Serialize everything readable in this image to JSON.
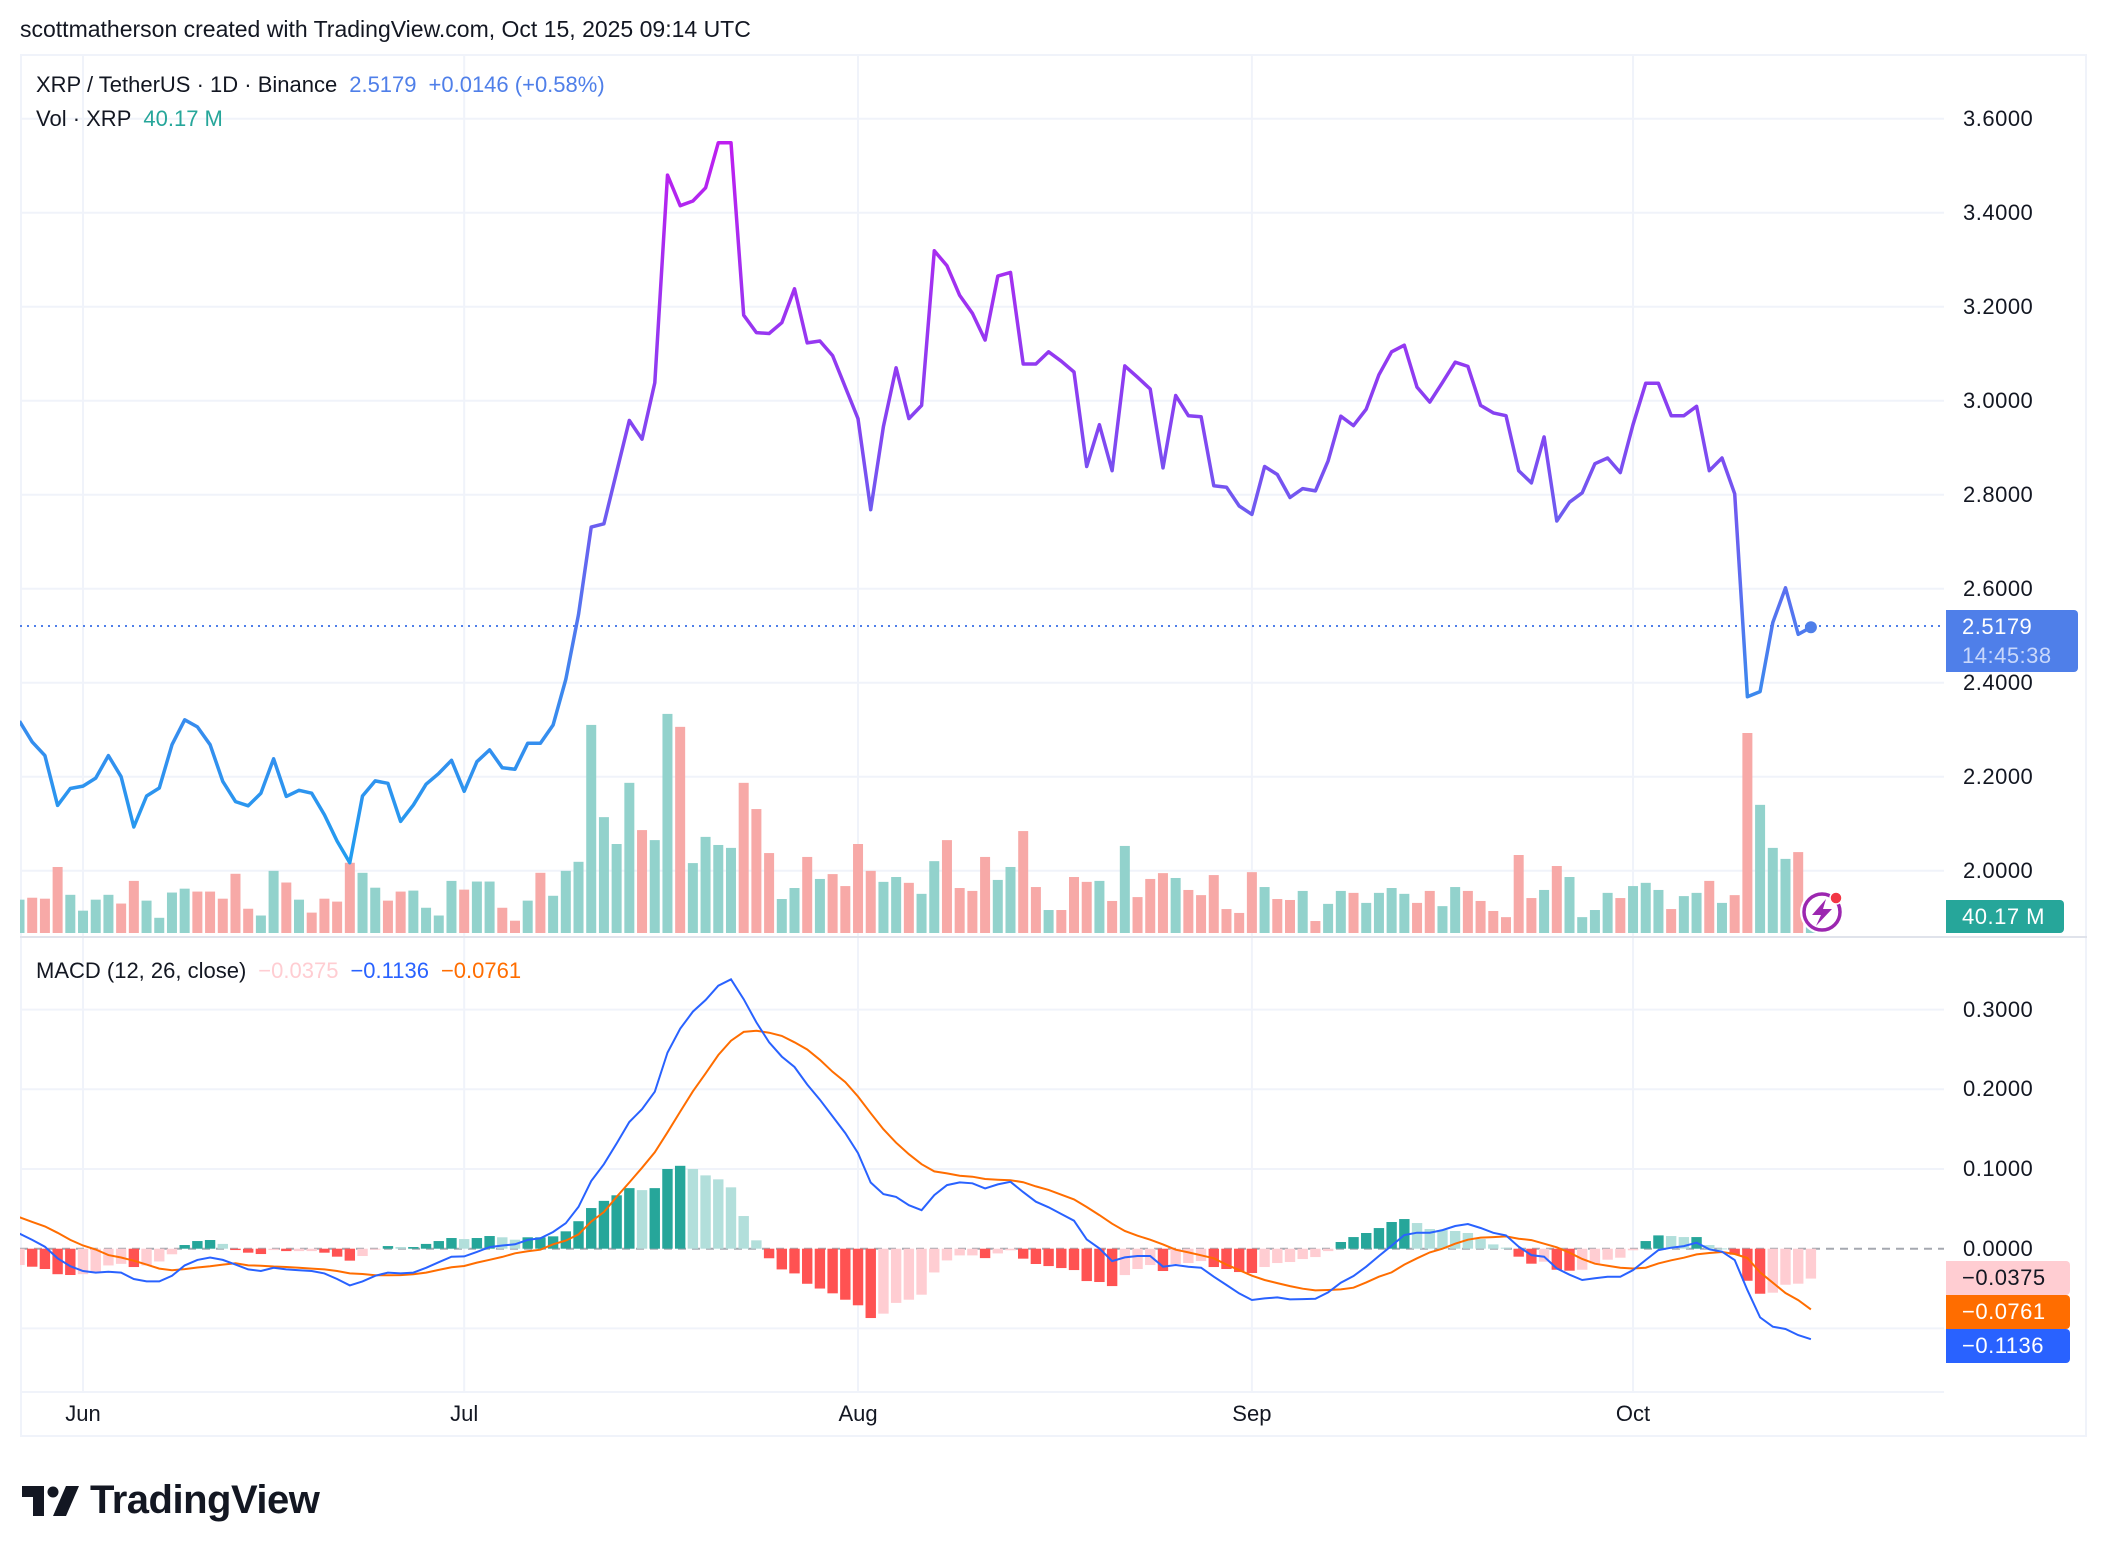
{
  "header": {
    "attribution": "scottmatherson created with TradingView.com, Oct 15, 2025 09:14 UTC"
  },
  "legend": {
    "symbol": "XRP / TetherUS · 1D · Binance",
    "last_price": "2.5179",
    "change": "+0.0146 (+0.58%)",
    "volume_label": "Vol · XRP",
    "volume_value": "40.17 M",
    "macd_label": "MACD (12, 26, close)",
    "macd_histogram": "−0.0375",
    "macd_line": "−0.1136",
    "macd_signal": "−0.0761"
  },
  "price_tag": {
    "price": "2.5179",
    "countdown": "14:45:38"
  },
  "volume_tag": "40.17 M",
  "macd_tags": {
    "histogram": "−0.0375",
    "signal": "−0.0761",
    "macd": "−0.1136"
  },
  "price_axis_ticks": [
    "3.6000",
    "3.4000",
    "3.2000",
    "3.0000",
    "2.8000",
    "2.6000",
    "2.4000",
    "2.2000",
    "2.0000"
  ],
  "macd_axis_ticks": [
    "0.3000",
    "0.2000",
    "0.1000",
    "0.0000"
  ],
  "time_axis_ticks": [
    {
      "label": "Jun",
      "date": "2025-06-01"
    },
    {
      "label": "Jul",
      "date": "2025-07-01"
    },
    {
      "label": "Aug",
      "date": "2025-08-01"
    },
    {
      "label": "Sep",
      "date": "2025-09-01"
    },
    {
      "label": "Oct",
      "date": "2025-10-01"
    }
  ],
  "logo": {
    "text": "TradingView"
  },
  "colors": {
    "price_line_low": "#1e9ff0",
    "price_line_high": "#c21cf0",
    "last_price": "#4f7fe9",
    "volume_up": "#92d2cc",
    "volume_down": "#f7a9a7",
    "macd_line": "#2962ff",
    "signal_line": "#ff6d00",
    "hist_pos_rising": "#26a69a",
    "hist_pos_falling": "#b2dfdb",
    "hist_neg_falling": "#ff5252",
    "hist_neg_rising": "#ffcdd2",
    "grid": "#f0f3fa",
    "alert_icon": "#9c27b0"
  },
  "chart_data": {
    "type": "line",
    "symbol": "XRP / TetherUS",
    "interval": "1D",
    "ylim": [
      2.0,
      3.6
    ],
    "macd_ylim": [
      -0.1,
      0.3
    ],
    "grid": true,
    "dates": [
      "2025-05-27",
      "2025-05-28",
      "2025-05-29",
      "2025-05-30",
      "2025-05-31",
      "2025-06-01",
      "2025-06-02",
      "2025-06-03",
      "2025-06-04",
      "2025-06-05",
      "2025-06-06",
      "2025-06-07",
      "2025-06-08",
      "2025-06-09",
      "2025-06-10",
      "2025-06-11",
      "2025-06-12",
      "2025-06-13",
      "2025-06-14",
      "2025-06-15",
      "2025-06-16",
      "2025-06-17",
      "2025-06-18",
      "2025-06-19",
      "2025-06-20",
      "2025-06-21",
      "2025-06-22",
      "2025-06-23",
      "2025-06-24",
      "2025-06-25",
      "2025-06-26",
      "2025-06-27",
      "2025-06-28",
      "2025-06-29",
      "2025-06-30",
      "2025-07-01",
      "2025-07-02",
      "2025-07-03",
      "2025-07-04",
      "2025-07-05",
      "2025-07-06",
      "2025-07-07",
      "2025-07-08",
      "2025-07-09",
      "2025-07-10",
      "2025-07-11",
      "2025-07-12",
      "2025-07-13",
      "2025-07-14",
      "2025-07-15",
      "2025-07-16",
      "2025-07-17",
      "2025-07-18",
      "2025-07-19",
      "2025-07-20",
      "2025-07-21",
      "2025-07-22",
      "2025-07-23",
      "2025-07-24",
      "2025-07-25",
      "2025-07-26",
      "2025-07-27",
      "2025-07-28",
      "2025-07-29",
      "2025-07-30",
      "2025-07-31",
      "2025-08-01",
      "2025-08-02",
      "2025-08-03",
      "2025-08-04",
      "2025-08-05",
      "2025-08-06",
      "2025-08-07",
      "2025-08-08",
      "2025-08-09",
      "2025-08-10",
      "2025-08-11",
      "2025-08-12",
      "2025-08-13",
      "2025-08-14",
      "2025-08-15",
      "2025-08-16",
      "2025-08-17",
      "2025-08-18",
      "2025-08-19",
      "2025-08-20",
      "2025-08-21",
      "2025-08-22",
      "2025-08-23",
      "2025-08-24",
      "2025-08-25",
      "2025-08-26",
      "2025-08-27",
      "2025-08-28",
      "2025-08-29",
      "2025-08-30",
      "2025-08-31",
      "2025-09-01",
      "2025-09-02",
      "2025-09-03",
      "2025-09-04",
      "2025-09-05",
      "2025-09-06",
      "2025-09-07",
      "2025-09-08",
      "2025-09-09",
      "2025-09-10",
      "2025-09-11",
      "2025-09-12",
      "2025-09-13",
      "2025-09-14",
      "2025-09-15",
      "2025-09-16",
      "2025-09-17",
      "2025-09-18",
      "2025-09-19",
      "2025-09-20",
      "2025-09-21",
      "2025-09-22",
      "2025-09-23",
      "2025-09-24",
      "2025-09-25",
      "2025-09-26",
      "2025-09-27",
      "2025-09-28",
      "2025-09-29",
      "2025-09-30",
      "2025-10-01",
      "2025-10-02",
      "2025-10-03",
      "2025-10-04",
      "2025-10-05",
      "2025-10-06",
      "2025-10-07",
      "2025-10-08",
      "2025-10-09",
      "2025-10-10",
      "2025-10-11",
      "2025-10-12",
      "2025-10-13",
      "2025-10-14",
      "2025-10-15"
    ],
    "close": [
      2.318,
      2.274,
      2.245,
      2.139,
      2.175,
      2.18,
      2.197,
      2.245,
      2.2,
      2.093,
      2.159,
      2.176,
      2.268,
      2.321,
      2.306,
      2.268,
      2.19,
      2.147,
      2.138,
      2.165,
      2.238,
      2.158,
      2.171,
      2.165,
      2.119,
      2.063,
      2.017,
      2.159,
      2.191,
      2.186,
      2.105,
      2.14,
      2.184,
      2.207,
      2.235,
      2.169,
      2.232,
      2.257,
      2.219,
      2.216,
      2.271,
      2.271,
      2.31,
      2.407,
      2.545,
      2.731,
      2.738,
      2.848,
      2.958,
      2.918,
      3.038,
      3.48,
      3.415,
      3.425,
      3.453,
      3.549,
      3.549,
      3.182,
      3.145,
      3.143,
      3.166,
      3.238,
      3.123,
      3.127,
      3.096,
      3.029,
      2.962,
      2.768,
      2.945,
      3.07,
      2.962,
      2.99,
      3.319,
      3.287,
      3.224,
      3.186,
      3.129,
      3.265,
      3.273,
      3.078,
      3.078,
      3.104,
      3.084,
      3.061,
      2.86,
      2.949,
      2.851,
      3.074,
      3.05,
      3.025,
      2.857,
      3.011,
      2.968,
      2.966,
      2.819,
      2.816,
      2.776,
      2.758,
      2.86,
      2.843,
      2.794,
      2.813,
      2.808,
      2.872,
      2.967,
      2.947,
      2.982,
      3.055,
      3.104,
      3.118,
      3.029,
      2.997,
      3.039,
      3.082,
      3.073,
      2.99,
      2.974,
      2.968,
      2.851,
      2.825,
      2.923,
      2.744,
      2.784,
      2.804,
      2.866,
      2.878,
      2.847,
      2.949,
      3.037,
      3.037,
      2.968,
      2.968,
      2.988,
      2.851,
      2.878,
      2.802,
      2.37,
      2.381,
      2.528,
      2.602,
      2.503,
      2.5179
    ],
    "volume_millions": [
      103,
      109,
      106,
      204,
      118,
      69,
      103,
      118,
      91,
      161,
      100,
      47,
      125,
      137,
      128,
      128,
      106,
      183,
      75,
      54,
      192,
      156,
      103,
      63,
      106,
      97,
      217,
      186,
      140,
      100,
      128,
      131,
      78,
      54,
      161,
      134,
      159,
      159,
      78,
      38,
      100,
      186,
      115,
      192,
      220,
      643,
      358,
      275,
      464,
      318,
      287,
      677,
      637,
      216,
      297,
      272,
      263,
      464,
      383,
      247,
      105,
      139,
      235,
      167,
      182,
      145,
      275,
      192,
      158,
      173,
      155,
      121,
      222,
      287,
      139,
      130,
      235,
      164,
      204,
      315,
      142,
      71,
      71,
      173,
      158,
      161,
      99,
      269,
      111,
      167,
      185,
      170,
      133,
      117,
      179,
      74,
      62,
      188,
      142,
      105,
      102,
      130,
      37,
      90,
      130,
      124,
      93,
      124,
      139,
      121,
      93,
      130,
      83,
      142,
      130,
      99,
      68,
      49,
      241,
      108,
      133,
      207,
      173,
      49,
      71,
      124,
      108,
      145,
      155,
      133,
      74,
      114,
      124,
      161,
      93,
      117,
      618,
      396,
      263,
      229,
      250,
      40.17
    ],
    "volume_up": [
      1,
      0,
      0,
      0,
      1,
      1,
      1,
      1,
      0,
      0,
      1,
      1,
      1,
      1,
      0,
      0,
      0,
      0,
      0,
      1,
      1,
      0,
      1,
      0,
      0,
      0,
      0,
      1,
      1,
      0,
      0,
      1,
      1,
      1,
      1,
      0,
      1,
      1,
      0,
      0,
      1,
      0,
      1,
      1,
      1,
      1,
      1,
      1,
      1,
      0,
      1,
      1,
      0,
      1,
      1,
      1,
      1,
      0,
      0,
      0,
      1,
      1,
      0,
      1,
      0,
      0,
      0,
      0,
      1,
      1,
      0,
      1,
      1,
      0,
      0,
      0,
      0,
      1,
      1,
      0,
      0,
      1,
      0,
      0,
      0,
      1,
      0,
      1,
      0,
      0,
      0,
      1,
      0,
      0,
      0,
      0,
      0,
      0,
      1,
      0,
      0,
      1,
      0,
      1,
      1,
      0,
      1,
      1,
      1,
      1,
      0,
      0,
      1,
      1,
      0,
      0,
      0,
      0,
      0,
      0,
      1,
      0,
      1,
      1,
      1,
      1,
      0,
      1,
      1,
      1,
      0,
      1,
      1,
      0,
      1,
      0,
      0,
      1,
      1,
      1,
      0,
      1
    ],
    "macd": [
      0.019,
      0.011,
      0.0025,
      -0.012,
      -0.022,
      -0.028,
      -0.03,
      -0.029,
      -0.03,
      -0.038,
      -0.041,
      -0.041,
      -0.034,
      -0.021,
      -0.014,
      -0.011,
      -0.014,
      -0.02,
      -0.026,
      -0.028,
      -0.024,
      -0.026,
      -0.027,
      -0.028,
      -0.031,
      -0.038,
      -0.046,
      -0.041,
      -0.034,
      -0.03,
      -0.031,
      -0.03,
      -0.024,
      -0.017,
      -0.01,
      -0.0096,
      -0.004,
      0.002,
      0.004,
      0.0055,
      0.011,
      0.013,
      0.021,
      0.032,
      0.0525,
      0.085,
      0.106,
      0.132,
      0.159,
      0.175,
      0.197,
      0.246,
      0.276,
      0.2975,
      0.312,
      0.33,
      0.338,
      0.313,
      0.284,
      0.259,
      0.241,
      0.228,
      0.206,
      0.187,
      0.166,
      0.145,
      0.12,
      0.083,
      0.0685,
      0.065,
      0.0546,
      0.0483,
      0.0672,
      0.0798,
      0.0832,
      0.082,
      0.0756,
      0.0807,
      0.084,
      0.071,
      0.059,
      0.052,
      0.0435,
      0.0351,
      0.0117,
      0.0004,
      -0.0155,
      -0.0109,
      -0.0092,
      -0.0092,
      -0.0226,
      -0.0205,
      -0.0226,
      -0.0238,
      -0.0351,
      -0.0456,
      -0.0561,
      -0.0644,
      -0.0623,
      -0.0611,
      -0.0636,
      -0.0632,
      -0.0628,
      -0.0548,
      -0.0427,
      -0.0343,
      -0.0226,
      -0.0092,
      0.0038,
      0.0172,
      0.0201,
      0.0201,
      0.0234,
      0.0285,
      0.031,
      0.026,
      0.02,
      0.0167,
      0.0025,
      -0.008,
      -0.01,
      -0.0247,
      -0.0326,
      -0.0393,
      -0.0372,
      -0.0351,
      -0.0351,
      -0.0268,
      -0.0142,
      -0.0017,
      0.0013,
      0.0033,
      0.0075,
      -0.0008,
      -0.0038,
      -0.0142,
      -0.0519,
      -0.0862,
      -0.0979,
      -0.1008,
      -0.1084,
      -0.1136
    ],
    "signal": [
      0.0395,
      0.0336,
      0.028,
      0.02,
      0.011,
      0.004,
      -0.001,
      -0.008,
      -0.011,
      -0.015,
      -0.02,
      -0.025,
      -0.027,
      -0.0256,
      -0.0236,
      -0.0219,
      -0.02,
      -0.0183,
      -0.021,
      -0.0213,
      -0.0223,
      -0.023,
      -0.024,
      -0.025,
      -0.026,
      -0.028,
      -0.031,
      -0.0318,
      -0.0332,
      -0.0333,
      -0.0331,
      -0.0321,
      -0.03,
      -0.0266,
      -0.0234,
      -0.0217,
      -0.0174,
      -0.0139,
      -0.0103,
      -0.0058,
      -0.0033,
      -0.0013,
      0.0055,
      0.0102,
      0.018,
      0.034,
      0.046,
      0.065,
      0.083,
      0.1015,
      0.121,
      0.146,
      0.172,
      0.1975,
      0.22,
      0.243,
      0.261,
      0.272,
      0.2735,
      0.271,
      0.267,
      0.259,
      0.25,
      0.237,
      0.222,
      0.209,
      0.191,
      0.17,
      0.15,
      0.133,
      0.1186,
      0.106,
      0.097,
      0.0945,
      0.0916,
      0.0904,
      0.0874,
      0.0866,
      0.086,
      0.0835,
      0.0782,
      0.0738,
      0.0678,
      0.0619,
      0.0523,
      0.0422,
      0.0314,
      0.0222,
      0.0163,
      0.0113,
      0.0054,
      -0.0013,
      -0.0046,
      -0.0083,
      -0.0121,
      -0.0201,
      -0.0268,
      -0.0339,
      -0.0393,
      -0.0431,
      -0.0469,
      -0.0502,
      -0.0523,
      -0.0518,
      -0.0511,
      -0.0489,
      -0.0423,
      -0.0351,
      -0.0297,
      -0.02,
      -0.0121,
      -0.0046,
      0.0,
      0.0063,
      0.0113,
      0.0139,
      0.0146,
      0.0154,
      0.0125,
      0.0108,
      0.0063,
      0.0017,
      -0.005,
      -0.0129,
      -0.0188,
      -0.0213,
      -0.0238,
      -0.0248,
      -0.0238,
      -0.0184,
      -0.0146,
      -0.0113,
      -0.0071,
      -0.0054,
      -0.0042,
      -0.0067,
      -0.0117,
      -0.0297,
      -0.0427,
      -0.0556,
      -0.0645,
      -0.0761
    ]
  }
}
